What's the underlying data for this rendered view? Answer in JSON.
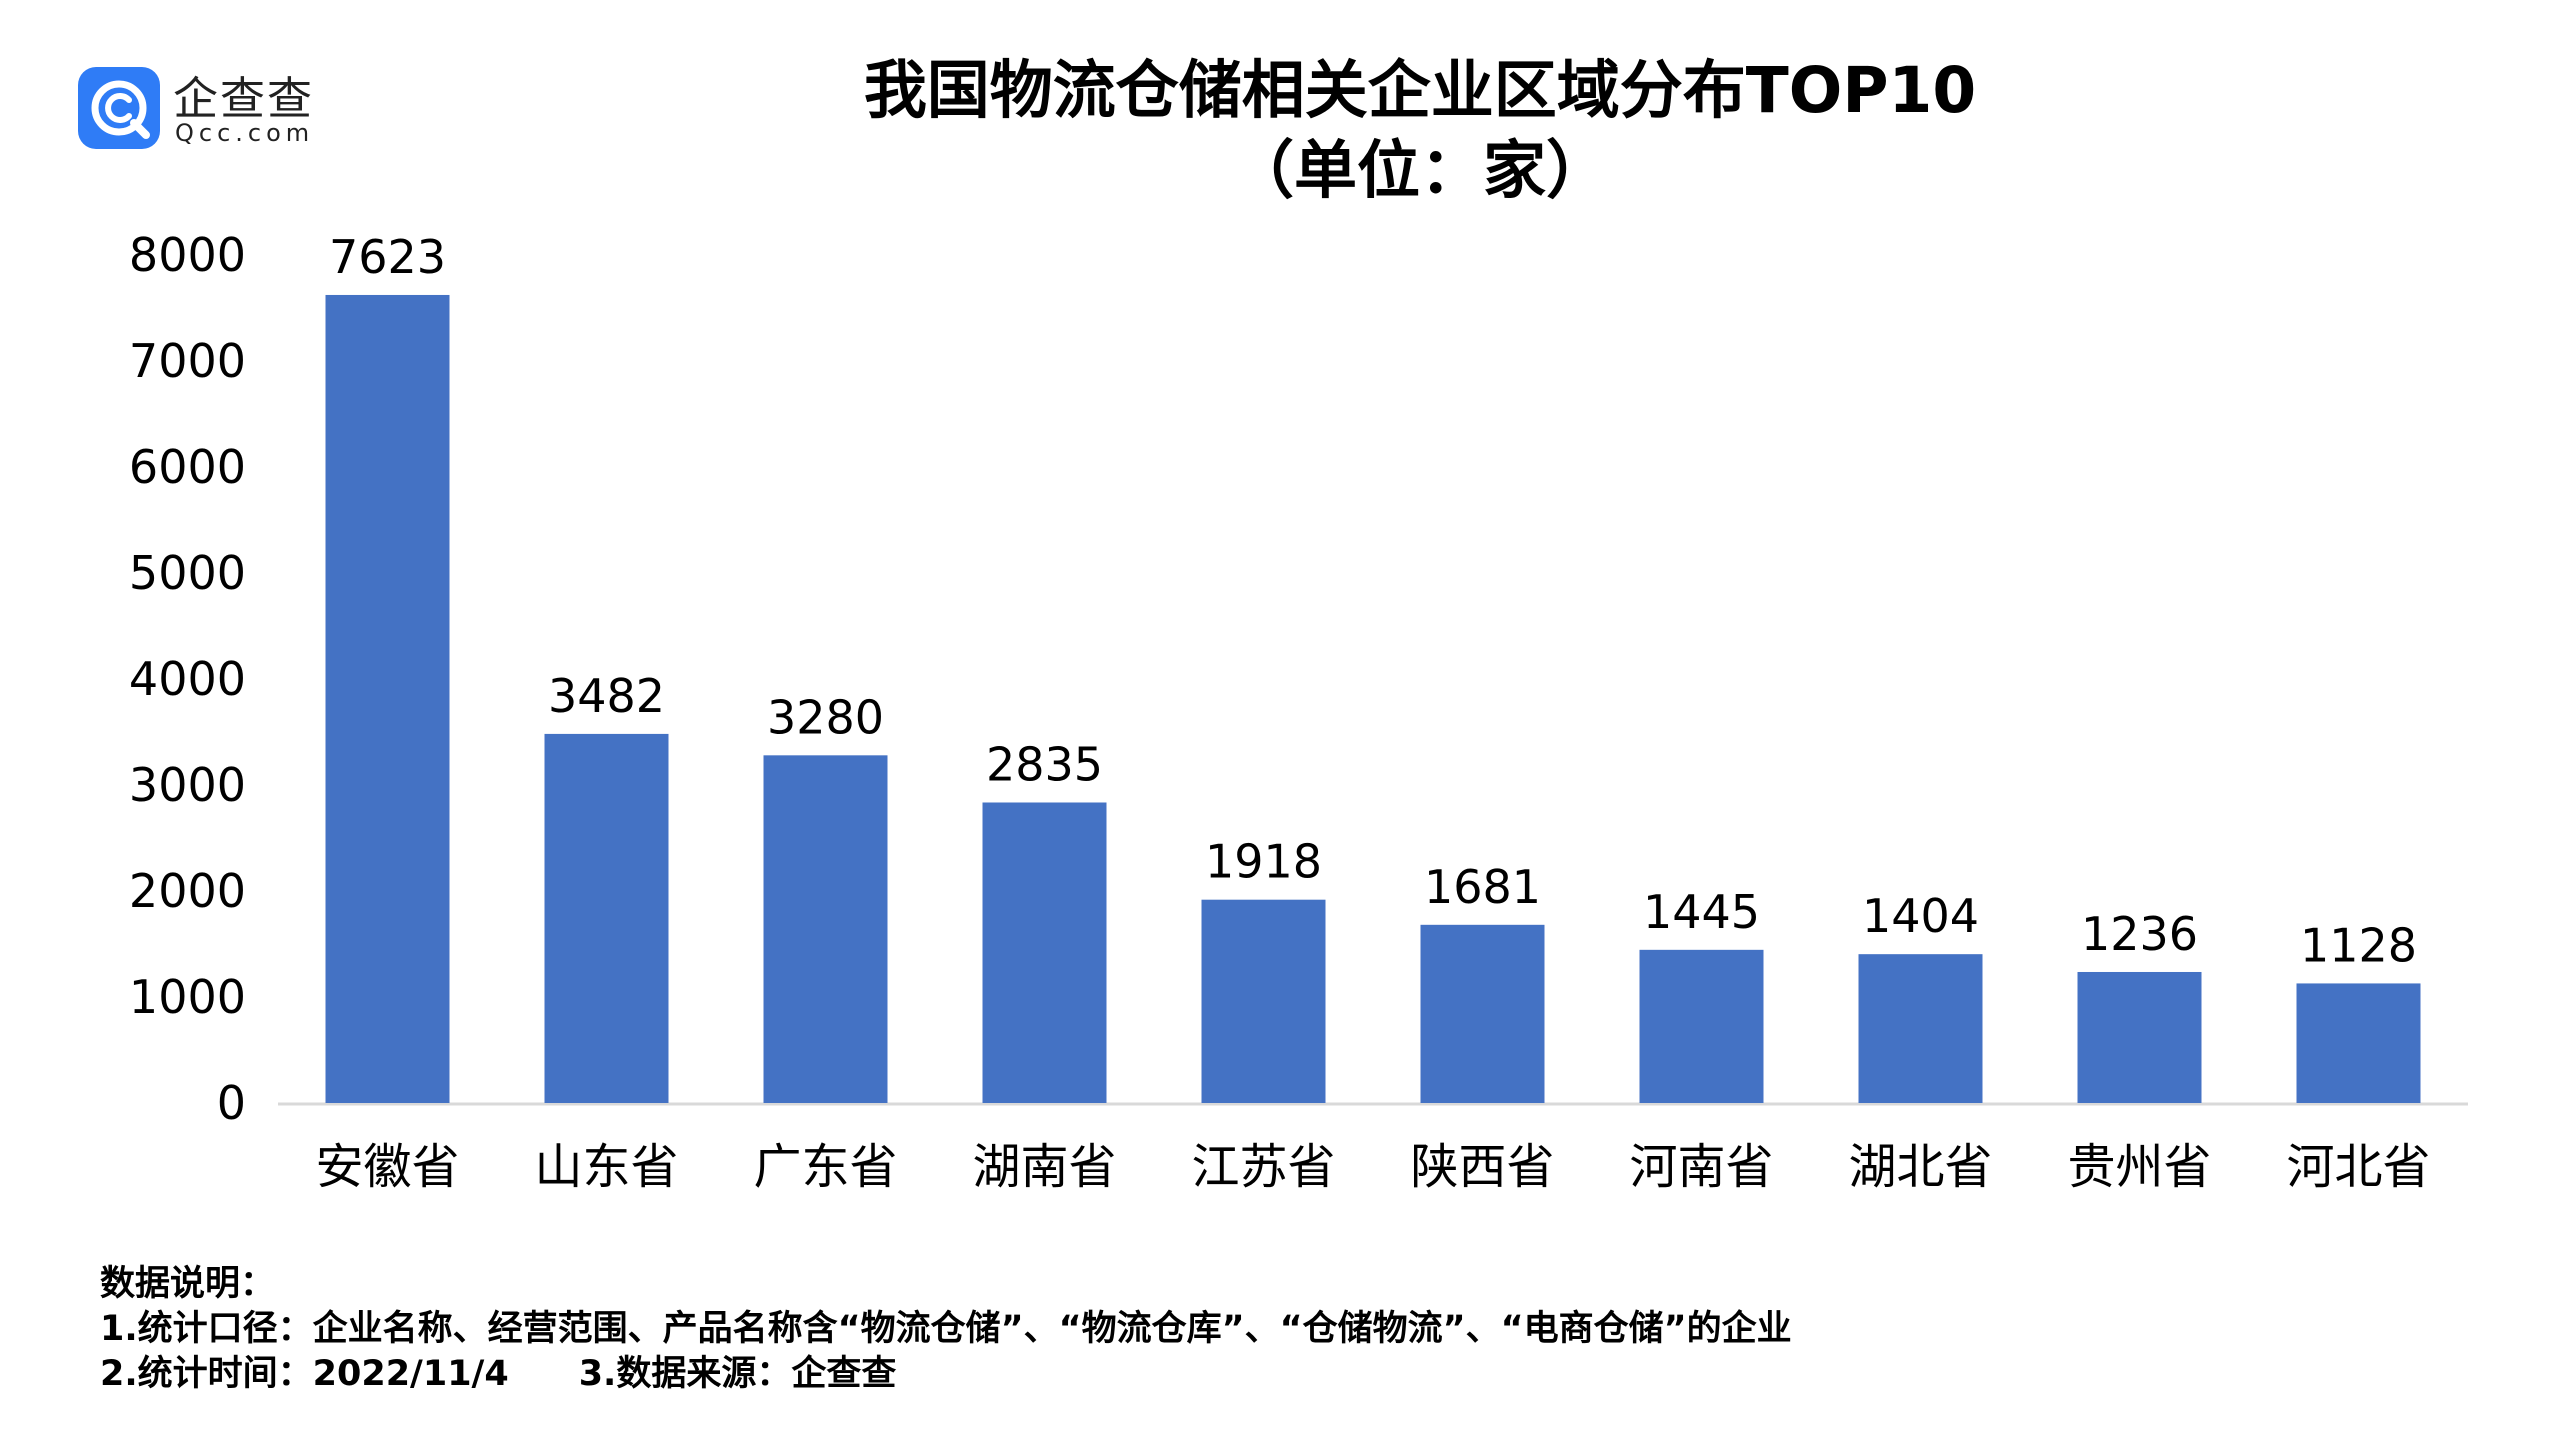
{
  "logo": {
    "name": "企查查",
    "domain": "Qcc.com"
  },
  "title": {
    "main": "我国物流仓储相关企业区域分布TOP10",
    "sub": "（单位：家）"
  },
  "chart_data": {
    "type": "bar",
    "title": "我国物流仓储相关企业区域分布TOP10",
    "subtitle": "（单位：家）",
    "categories": [
      "安徽省",
      "山东省",
      "广东省",
      "湖南省",
      "江苏省",
      "陕西省",
      "河南省",
      "湖北省",
      "贵州省",
      "河北省"
    ],
    "values": [
      7623,
      3482,
      3280,
      2835,
      1918,
      1681,
      1445,
      1404,
      1236,
      1128
    ],
    "ylim": [
      0,
      8000
    ],
    "yticks": [
      "0",
      "1000",
      "2000",
      "3000",
      "4000",
      "5000",
      "6000",
      "7000",
      "8000"
    ],
    "xlabel": "",
    "ylabel": "",
    "grid": false,
    "data_labels": true,
    "bar_color": "#4472C4"
  },
  "notes": {
    "heading": "数据说明：",
    "line1": "1.统计口径：企业名称、经营范围、产品名称含“物流仓储”、“物流仓库”、“仓储物流”、“电商仓储”的企业",
    "line2_a": "2.统计时间：2022/11/4",
    "line2_b": "3.数据来源：企查查"
  },
  "colors": {
    "brand": "#2F7CF6",
    "bar": "#4472C4",
    "axis": "#D9D9D9"
  }
}
